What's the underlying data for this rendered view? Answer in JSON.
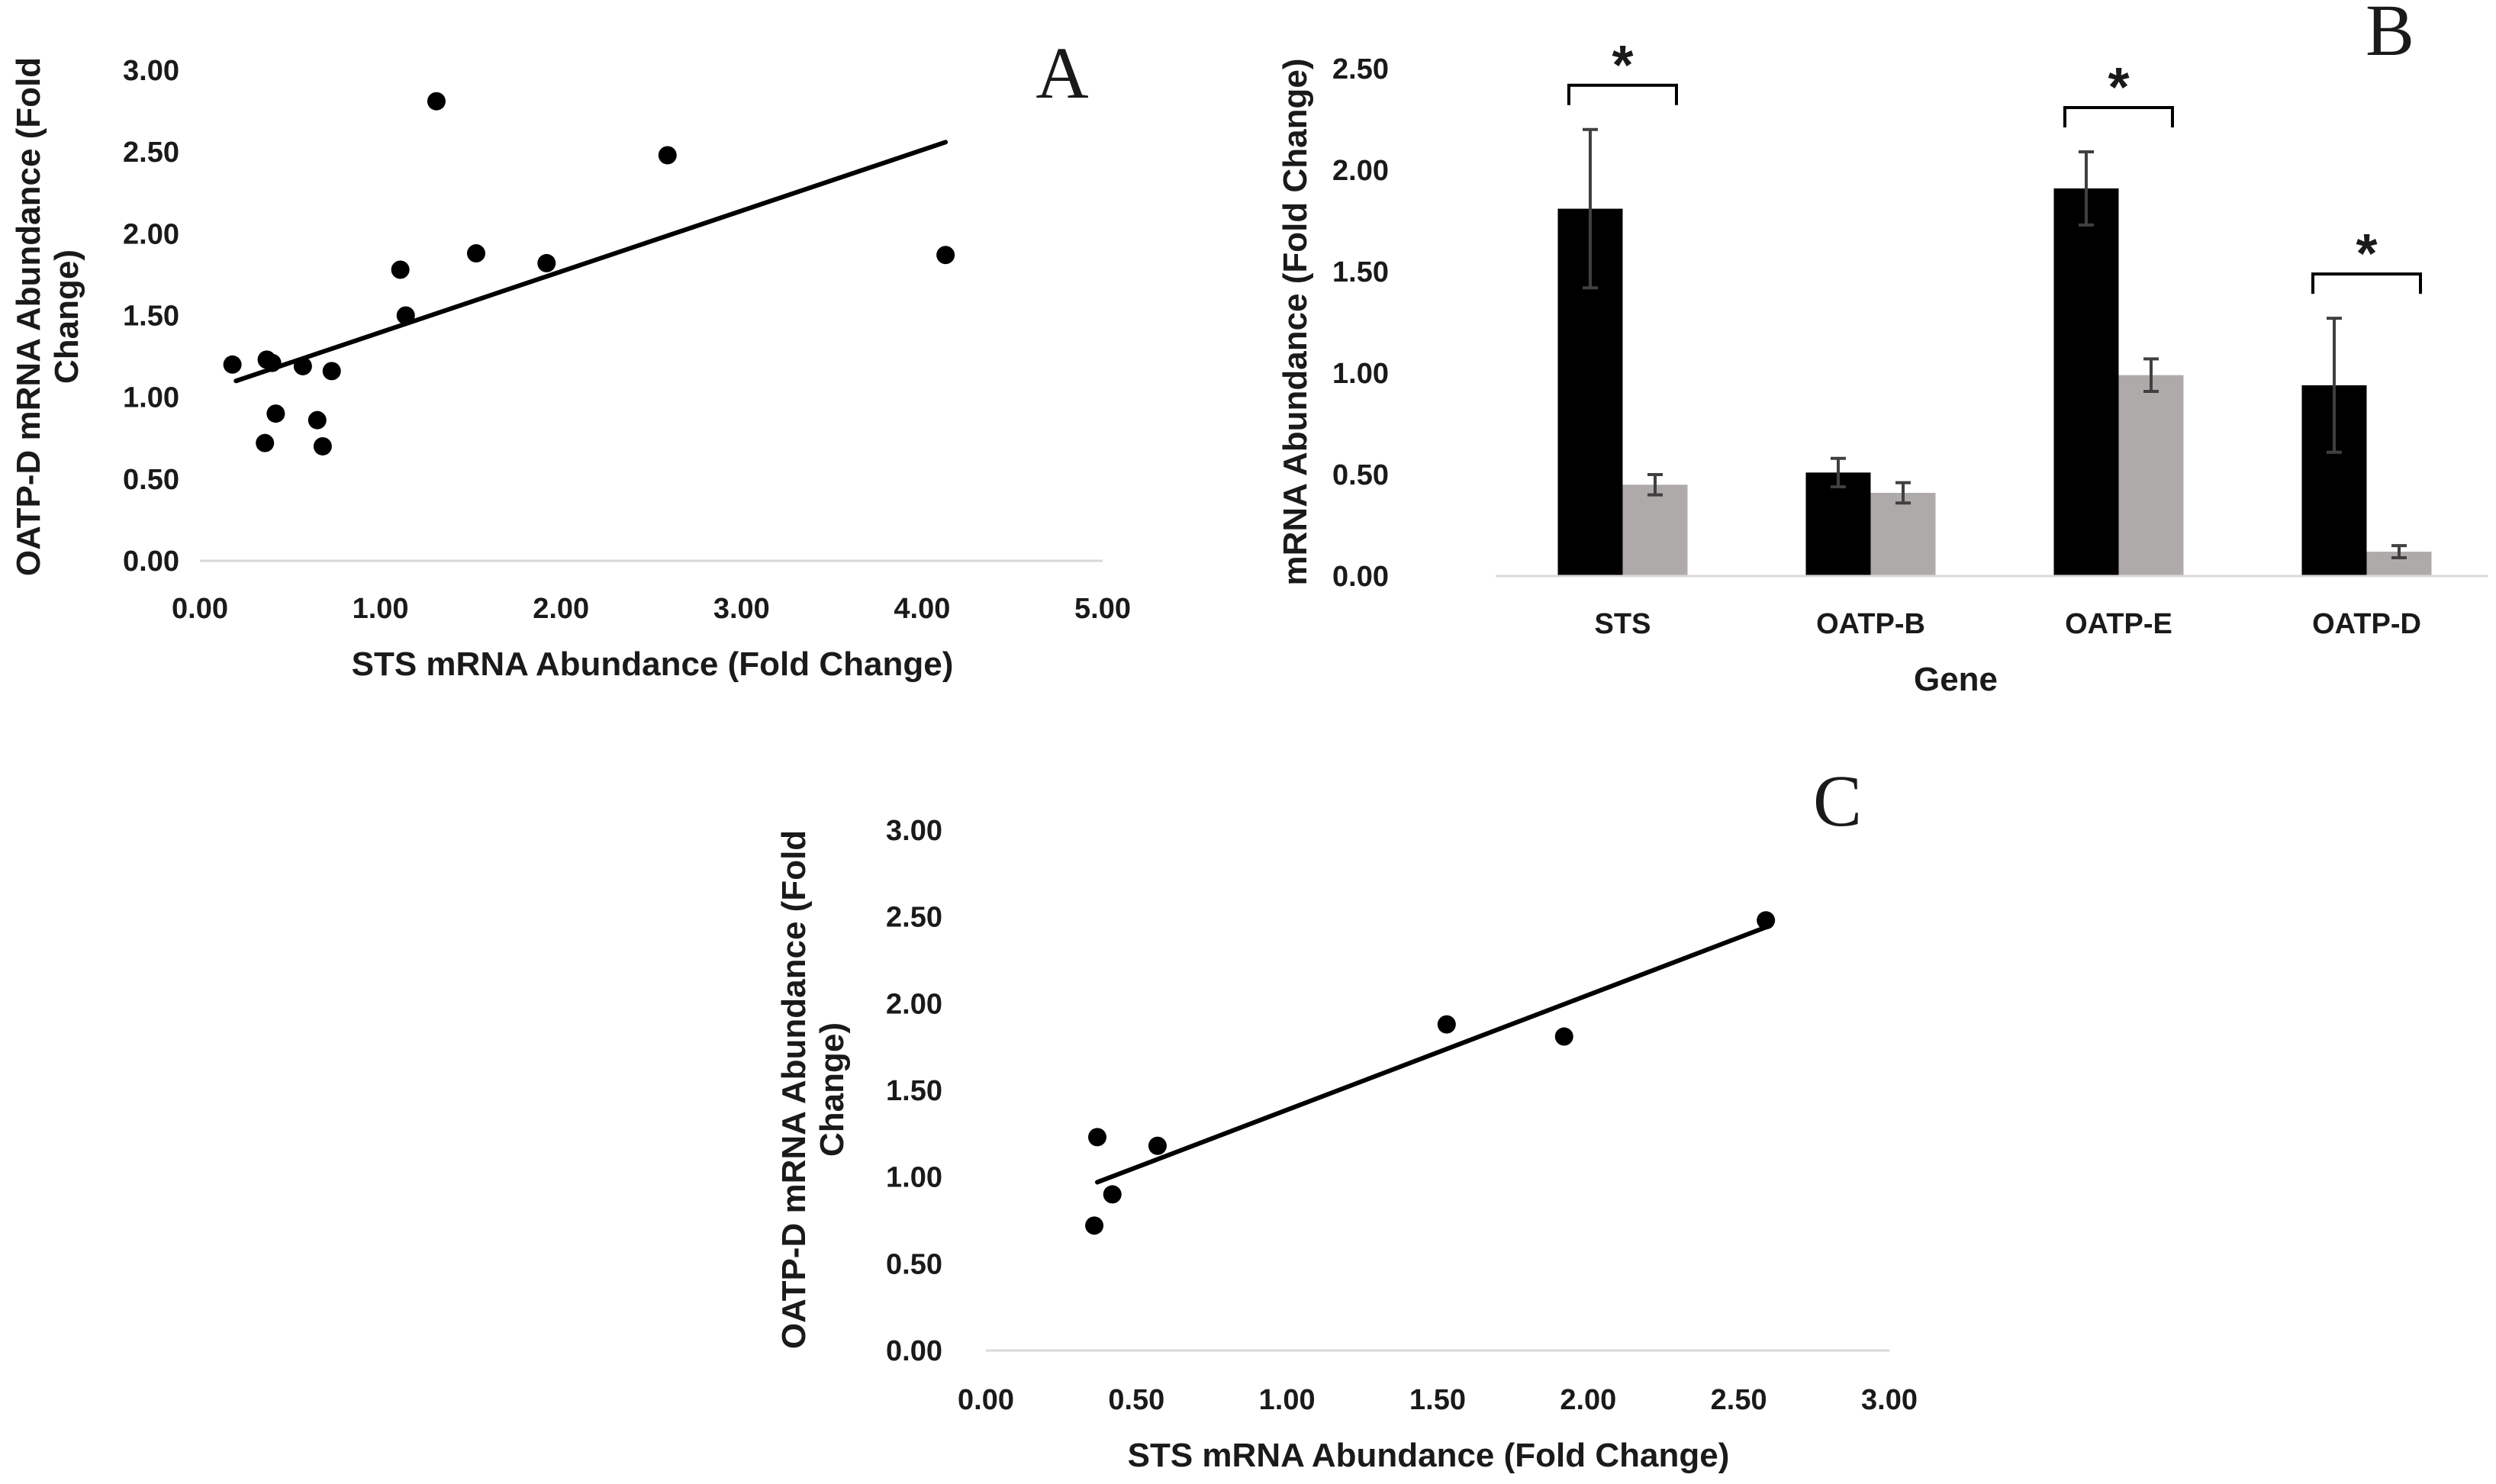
{
  "colors": {
    "axis": "#d9d9d9",
    "text": "#1a1a1a",
    "marker": "#000000",
    "bar_dark": "#000000",
    "bar_light": "#aeaaaa",
    "errorbar": "#404040"
  },
  "chart_data": [
    {
      "panel": "A",
      "type": "scatter",
      "xlabel": "STS mRNA Abundance (Fold Change)",
      "ylabel_lines": [
        "OATP-D mRNA Abundance (Fold",
        "Change)"
      ],
      "xlim": [
        0,
        5
      ],
      "ylim": [
        0,
        3
      ],
      "xticks": [
        "0.00",
        "1.00",
        "2.00",
        "3.00",
        "4.00",
        "5.00"
      ],
      "yticks": [
        "0.00",
        "0.50",
        "1.00",
        "1.50",
        "2.00",
        "2.50",
        "3.00"
      ],
      "points": [
        [
          0.18,
          1.2
        ],
        [
          0.37,
          1.23
        ],
        [
          0.4,
          1.21
        ],
        [
          0.36,
          0.72
        ],
        [
          0.42,
          0.9
        ],
        [
          0.57,
          1.19
        ],
        [
          0.65,
          0.86
        ],
        [
          0.68,
          0.7
        ],
        [
          0.73,
          1.16
        ],
        [
          1.11,
          1.78
        ],
        [
          1.14,
          1.5
        ],
        [
          1.31,
          2.81
        ],
        [
          1.53,
          1.88
        ],
        [
          1.92,
          1.82
        ],
        [
          2.59,
          2.48
        ],
        [
          4.13,
          1.87
        ]
      ],
      "trendline": [
        [
          0.2,
          1.1
        ],
        [
          4.13,
          2.56
        ]
      ]
    },
    {
      "panel": "B",
      "type": "bar",
      "xlabel": "Gene",
      "ylabel": "mRNA Abundance (Fold Change)",
      "ylim": [
        0,
        2.5
      ],
      "yticks": [
        "0.00",
        "0.50",
        "1.00",
        "1.50",
        "2.00",
        "2.50"
      ],
      "categories": [
        "STS",
        "OATP-B",
        "OATP-E",
        "OATP-D"
      ],
      "series": [
        {
          "name": "dark",
          "values": [
            1.81,
            0.51,
            1.91,
            0.94
          ],
          "errors": [
            0.39,
            0.07,
            0.18,
            0.33
          ]
        },
        {
          "name": "light",
          "values": [
            0.45,
            0.41,
            0.99,
            0.12
          ],
          "errors": [
            0.05,
            0.05,
            0.08,
            0.03
          ]
        }
      ],
      "significance": [
        "*",
        "",
        "*",
        "*"
      ]
    },
    {
      "panel": "C",
      "type": "scatter",
      "xlabel": "STS mRNA Abundance (Fold Change)",
      "ylabel_lines": [
        "OATP-D mRNA Abundance (Fold",
        "Change)"
      ],
      "xlim": [
        0,
        3
      ],
      "ylim": [
        0,
        3
      ],
      "xticks": [
        "0.00",
        "0.50",
        "1.00",
        "1.50",
        "2.00",
        "2.50",
        "3.00"
      ],
      "yticks": [
        "0.00",
        "0.50",
        "1.00",
        "1.50",
        "2.00",
        "2.50",
        "3.00"
      ],
      "points": [
        [
          0.37,
          1.23
        ],
        [
          0.36,
          0.72
        ],
        [
          0.42,
          0.9
        ],
        [
          0.57,
          1.18
        ],
        [
          1.53,
          1.88
        ],
        [
          1.92,
          1.81
        ],
        [
          2.59,
          2.48
        ]
      ],
      "trendline": [
        [
          0.37,
          0.97
        ],
        [
          2.59,
          2.44
        ]
      ]
    }
  ]
}
